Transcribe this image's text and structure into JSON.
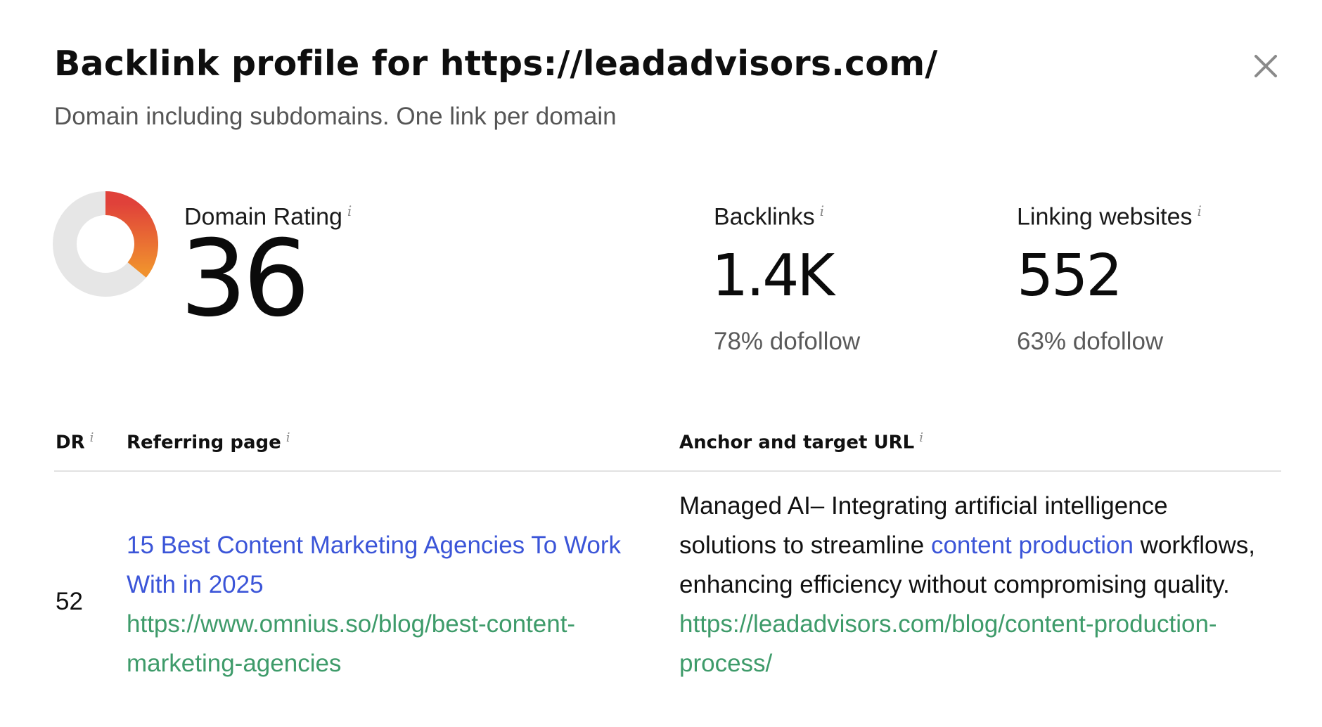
{
  "header": {
    "title": "Backlink profile for https://leadadvisors.com/",
    "subtitle": "Domain including subdomains. One link per domain",
    "close_icon": "close-icon"
  },
  "metrics": {
    "domain_rating": {
      "label": "Domain Rating",
      "info": "i",
      "value": "36",
      "gauge_fraction": 0.36,
      "gauge_colors": {
        "start": "#e0413a",
        "end": "#f0902e",
        "track": "#e6e6e6"
      }
    },
    "backlinks": {
      "label": "Backlinks",
      "info": "i",
      "value": "1.4K",
      "sub": "78% dofollow"
    },
    "linking_websites": {
      "label": "Linking websites",
      "info": "i",
      "value": "552",
      "sub": "63% dofollow"
    }
  },
  "table": {
    "columns": [
      {
        "label": "DR",
        "info": "i"
      },
      {
        "label": "Referring page",
        "info": "i"
      },
      {
        "label": "Anchor and target URL",
        "info": "i"
      }
    ],
    "rows": [
      {
        "dr": "52",
        "ref_title": "15 Best Content Marketing Agencies To Work With in 2025",
        "ref_url": "https://www.omnius.so/blog/best-content-marketing-agencies",
        "anchor_before": "Managed AI– Integrating artificial intelligence solutions to streamline ",
        "anchor_text": "content production",
        "anchor_after": " workflows, enhancing efficiency without compromising quality.",
        "target_url": "https://leadadvisors.com/blog/content-production-process/"
      }
    ]
  },
  "colors": {
    "link_blue": "#3b55d8",
    "url_green": "#3e9b6a"
  }
}
